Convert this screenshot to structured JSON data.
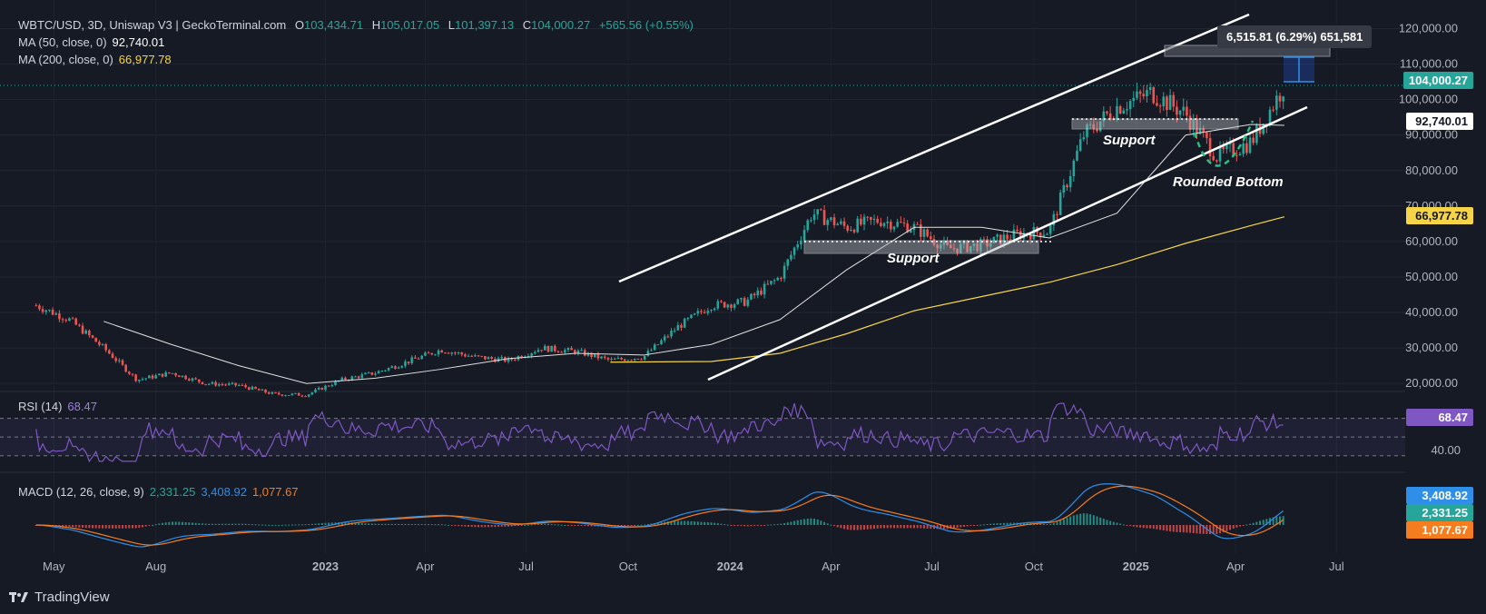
{
  "header": {
    "symbol_line": "WBTC/USD, 3D, Uniswap V3 | GeckoTerminal.com",
    "open_label": "O",
    "open": "103,434.71",
    "high_label": "H",
    "high": "105,017.05",
    "low_label": "L",
    "low": "101,397.13",
    "close_label": "C",
    "close": "104,000.27",
    "change": "+565.56 (+0.55%)",
    "ma50_label": "MA (50, close, 0)",
    "ma50_value": "92,740.01",
    "ma200_label": "MA (200, close, 0)",
    "ma200_value": "66,977.78"
  },
  "rsi": {
    "label": "RSI (14)",
    "value": "68.47",
    "tick": "40.00"
  },
  "macd": {
    "label": "MACD (12, 26, close, 9)",
    "hist": "2,331.25",
    "macd": "3,408.92",
    "signal": "1,077.67"
  },
  "tooltip": "6,515.81 (6.29%) 651,581",
  "annotations": {
    "support1": "Support",
    "support2": "Support",
    "rounded": "Rounded Bottom"
  },
  "branding": "TradingView",
  "colors": {
    "bg": "#161a25",
    "up": "#26a69a",
    "down": "#ef5350",
    "ma50": "#e0e0e0",
    "ma200": "#f5d547",
    "rsi": "#7e57c2",
    "macd": "#2f8ee8",
    "signal": "#f57c1f"
  },
  "chart_data": {
    "type": "line",
    "title": "",
    "xlabel": "",
    "ylabel": "",
    "ylim": [
      18000,
      125000
    ],
    "y_ticks": [
      "120,000.00",
      "110,000.00",
      "100,000.00",
      "90,000.00",
      "80,000.00",
      "70,000.00",
      "60,000.00",
      "50,000.00",
      "40,000.00",
      "30,000.00",
      "20,000.00"
    ],
    "x_ticks": [
      "May",
      "Aug",
      "2023",
      "Apr",
      "Jul",
      "Oct",
      "2024",
      "Apr",
      "Jul",
      "Oct",
      "2025",
      "Apr",
      "Jul"
    ],
    "series": [
      {
        "name": "",
        "x": [
          "2022-04",
          "2022-05",
          "2022-06",
          "2022-07",
          "2022-08",
          "2022-09",
          "2022-10",
          "2022-11",
          "2022-12",
          "2023-01",
          "2023-02",
          "2023-03",
          "2023-04",
          "2023-05",
          "2023-06",
          "2023-07",
          "2023-08",
          "2023-09",
          "2023-10",
          "2023-11",
          "2023-12",
          "2024-01",
          "2024-02",
          "2024-03",
          "2024-04",
          "2024-05",
          "2024-06",
          "2024-07",
          "2024-08",
          "2024-09",
          "2024-10",
          "2024-11",
          "2024-12",
          "2025-01",
          "2025-02",
          "2025-03",
          "2025-04",
          "2025-05"
        ],
        "values": [
          42000,
          38000,
          30000,
          21000,
          23000,
          20000,
          19500,
          17000,
          16800,
          21000,
          23000,
          26000,
          29500,
          27500,
          26500,
          30000,
          29000,
          26500,
          27500,
          36000,
          42000,
          43000,
          50000,
          68000,
          64000,
          66000,
          64000,
          58000,
          59000,
          62000,
          63000,
          90000,
          98000,
          102000,
          96000,
          84000,
          88000,
          104000
        ]
      },
      {
        "name": "",
        "x": [
          "2022-06",
          "2022-08",
          "2022-10",
          "2022-12",
          "2023-02",
          "2023-04",
          "2023-06",
          "2023-08",
          "2023-10",
          "2023-12",
          "2024-02",
          "2024-04",
          "2024-06",
          "2024-08",
          "2024-10",
          "2024-12",
          "2025-02",
          "2025-04",
          "2025-05"
        ],
        "values": [
          37500,
          31000,
          25000,
          20000,
          21500,
          24000,
          27000,
          28500,
          28000,
          31000,
          38000,
          52000,
          64000,
          64000,
          61000,
          68000,
          90000,
          93000,
          92740
        ]
      },
      {
        "name": "",
        "x": [
          "2023-09",
          "2023-12",
          "2024-02",
          "2024-04",
          "2024-06",
          "2024-08",
          "2024-10",
          "2024-12",
          "2025-02",
          "2025-04",
          "2025-05"
        ],
        "values": [
          26000,
          26200,
          28500,
          34000,
          40500,
          44500,
          48500,
          53500,
          59500,
          64500,
          66977
        ]
      }
    ],
    "rsi_ylim": [
      20,
      90
    ],
    "rsi_levels": [
      70,
      50,
      30
    ]
  }
}
